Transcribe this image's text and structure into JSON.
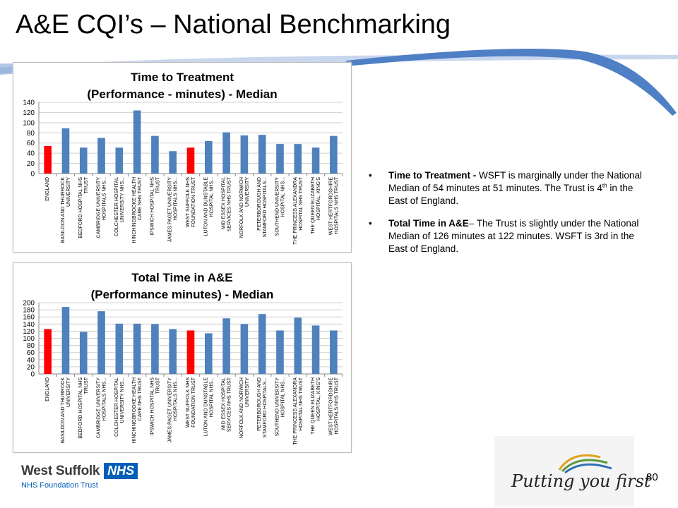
{
  "slide": {
    "title": "A&E CQI’s – National Benchmarking",
    "page_number": "30"
  },
  "bullets": [
    {
      "bold": "Time to Treatment - ",
      "text1": " WSFT is marginally under the National Median of 54 minutes at 51 minutes.  The Trust is 4",
      "sup": "th",
      "text2": "  in the East of England."
    },
    {
      "bold": "Total Time in A&E",
      "text1": "– The Trust is slightly under the National Median of 126 minutes at 122 minutes.  WSFT is 3rd  in the East of England.",
      "sup": "",
      "text2": ""
    }
  ],
  "logo": {
    "name": "West Suffolk",
    "nhs": "NHS",
    "subtitle": "NHS Foundation Trust"
  },
  "slogan": "Putting you first",
  "colors": {
    "bar": "#4f81bd",
    "highlight": "#ff0000",
    "nhs_blue": "#005eb8",
    "swoosh": "#4f7fc4"
  },
  "chart_data": [
    {
      "type": "bar",
      "title": "Time to Treatment",
      "subtitle": "(Performance - minutes) - Median",
      "categories": [
        "ENGLAND",
        "BASILDON AND THURROCK UNIVERSITY HOSPITALS...",
        "BEDFORD HOSPITAL NHS TRUST",
        "CAMBRIDGE UNIVERSITY HOSPITALS NHS...",
        "COLCHESTER HOSPITAL UNIVERSITY NHS...",
        "HINCHINGBROOKE HEALTH CARE NHS TRUST",
        "IPSWICH HOSPITAL NHS TRUST",
        "JAMES PAGET UNIVERSITY HOSPITALS NHS...",
        "WEST SUFFOLK NHS FOUNDATION TRUST",
        "LUTON AND DUNSTABLE HOSPITAL NHS...",
        "MID ESSEX HOSPITAL SERVICES NHS TRUST",
        "NORFOLK AND NORWICH UNIVERSITY HOSPITALS...",
        "PETERBOROUGH AND STAMFORD HOSPITALS...",
        "SOUTHEND UNIVERSITY HOSPITAL NHS...",
        "THE PRINCESS ALEXANDRA HOSPITAL NHS TRUST",
        "THE QUEEN ELIZABETH HOSPITAL, KING'S LYNN,...",
        "WEST HERTFORDSHIRE HOSPITALS NHS TRUST"
      ],
      "values": [
        54,
        89,
        51,
        70,
        51,
        124,
        74,
        44,
        51,
        64,
        81,
        75,
        76,
        58,
        58,
        51,
        74
      ],
      "highlight": [
        "ENGLAND",
        "WEST SUFFOLK NHS FOUNDATION TRUST"
      ],
      "ylim": [
        0,
        140
      ],
      "yticks": [
        0,
        20,
        40,
        60,
        80,
        100,
        120,
        140
      ],
      "grid": true,
      "legend": "none"
    },
    {
      "type": "bar",
      "title": "Total Time in A&E",
      "subtitle": "(Performance minutes) - Median",
      "categories": [
        "ENGLAND",
        "BASILDON AND THURROCK UNIVERSITY HOSPITALS...",
        "BEDFORD HOSPITAL NHS TRUST",
        "CAMBRIDGE UNIVERSITY HOSPITALS NHS...",
        "COLCHESTER HOSPITAL UNIVERSITY NHS...",
        "HINCHINGBROOKE HEALTH CARE NHS TRUST",
        "IPSWICH HOSPITAL NHS TRUST",
        "JAMES PAGET UNIVERSITY HOSPITALS NHS...",
        "WEST SUFFOLK NHS FOUNDATION TRUST",
        "LUTON AND DUNSTABLE HOSPITAL NHS...",
        "MID ESSEX HOSPITAL SERVICES NHS TRUST",
        "NORFOLK AND NORWICH UNIVERSITY HOSPITALS...",
        "PETERBOROUGH AND STAMFORD HOSPITALS...",
        "SOUTHEND UNIVERSITY HOSPITAL NHS...",
        "THE PRINCESS ALEXANDRA HOSPITAL NHS TRUST",
        "THE QUEEN ELIZABETH HOSPITAL, KING'S LYNN,...",
        "WEST HERTFORDSHIRE HOSPITALS NHS TRUST"
      ],
      "values": [
        126,
        188,
        118,
        176,
        141,
        141,
        140,
        126,
        122,
        114,
        156,
        140,
        168,
        122,
        158,
        136,
        122
      ],
      "highlight": [
        "ENGLAND",
        "WEST SUFFOLK NHS FOUNDATION TRUST"
      ],
      "ylim": [
        0,
        200
      ],
      "yticks": [
        0,
        20,
        40,
        60,
        80,
        100,
        120,
        140,
        160,
        180,
        200
      ],
      "grid": true,
      "legend": "none"
    }
  ]
}
